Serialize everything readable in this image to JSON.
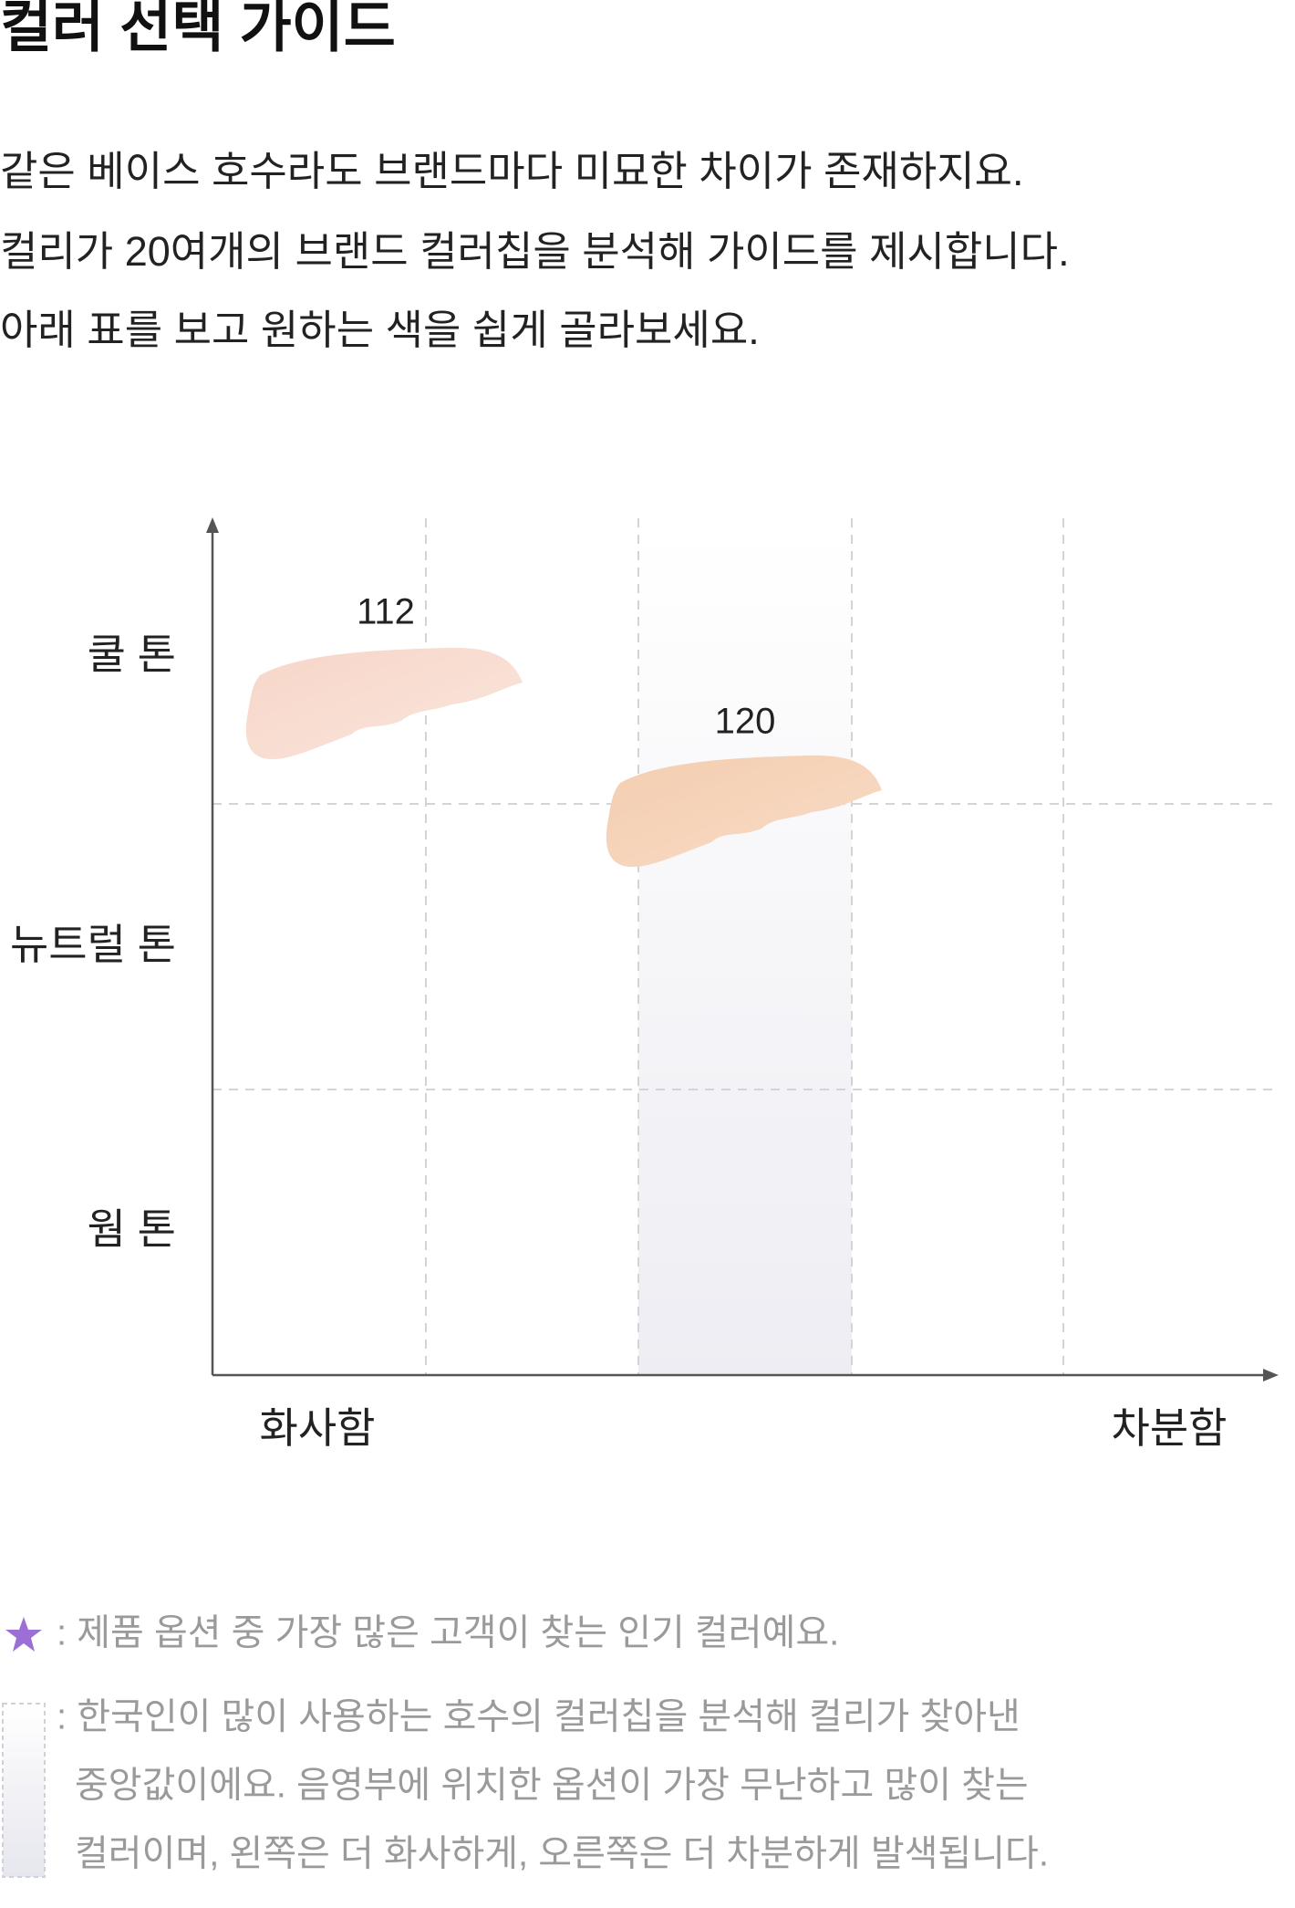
{
  "header": {
    "title": "컬러 선택 가이드"
  },
  "intro": {
    "lines": [
      "같은 베이스 호수라도 브랜드마다 미묘한 차이가 존재하지요.",
      "컬리가 20여개의 브랜드 컬러칩을 분석해 가이드를 제시합니다.",
      "아래 표를 보고 원하는 색을 쉽게 골라보세요."
    ]
  },
  "guide": {
    "y_labels": [
      "쿨 톤",
      "뉴트럴 톤",
      "웜 톤"
    ],
    "x_labels": [
      "화사함",
      "차분함"
    ],
    "swatches": [
      {
        "label": "112"
      },
      {
        "label": "120"
      }
    ]
  },
  "legend": {
    "star_note": ": 제품 옵션 중 가장 많은 고객이 찾는 인기 컬러예요.",
    "box_note_lines": [
      ": 한국인이 많이 사용하는 호수의 컬러칩을 분석해 컬리가 찾아낸",
      "중앙값이에요. 음영부에 위치한 옵션이 가장 무난하고 많이 찾는",
      "컬러이며, 왼쪽은 더 화사하게, 오른쪽은 더 차분하게 발색됩니다."
    ]
  }
}
